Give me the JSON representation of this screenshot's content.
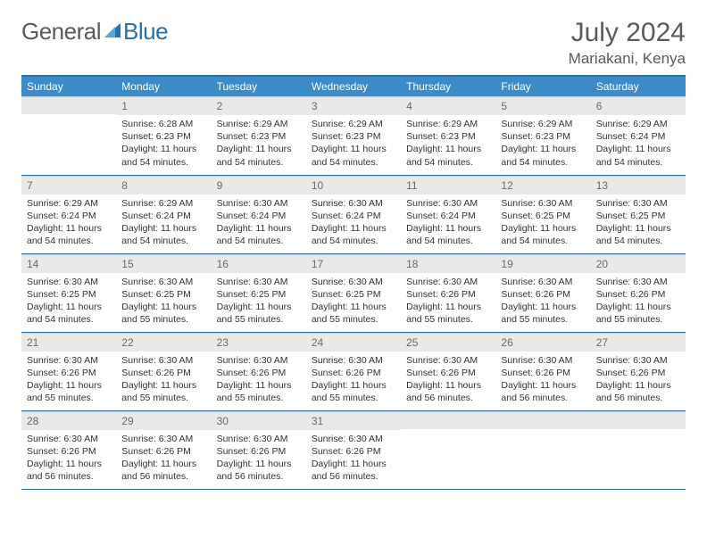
{
  "brand": {
    "part1": "General",
    "part2": "Blue"
  },
  "logo_colors": {
    "text1": "#5a5a5a",
    "text2": "#2b6fa3",
    "icon": "#2b6fa3"
  },
  "header": {
    "month": "July 2024",
    "location": "Mariakani, Kenya"
  },
  "header_bg": "#3b8bc8",
  "header_border": "#2b6fa3",
  "daynum_bg": "#e9e9e9",
  "day_names": [
    "Sunday",
    "Monday",
    "Tuesday",
    "Wednesday",
    "Thursday",
    "Friday",
    "Saturday"
  ],
  "weeks": [
    [
      null,
      {
        "n": "1",
        "sr": "6:28 AM",
        "ss": "6:23 PM",
        "dl": "11 hours and 54 minutes."
      },
      {
        "n": "2",
        "sr": "6:29 AM",
        "ss": "6:23 PM",
        "dl": "11 hours and 54 minutes."
      },
      {
        "n": "3",
        "sr": "6:29 AM",
        "ss": "6:23 PM",
        "dl": "11 hours and 54 minutes."
      },
      {
        "n": "4",
        "sr": "6:29 AM",
        "ss": "6:23 PM",
        "dl": "11 hours and 54 minutes."
      },
      {
        "n": "5",
        "sr": "6:29 AM",
        "ss": "6:23 PM",
        "dl": "11 hours and 54 minutes."
      },
      {
        "n": "6",
        "sr": "6:29 AM",
        "ss": "6:24 PM",
        "dl": "11 hours and 54 minutes."
      }
    ],
    [
      {
        "n": "7",
        "sr": "6:29 AM",
        "ss": "6:24 PM",
        "dl": "11 hours and 54 minutes."
      },
      {
        "n": "8",
        "sr": "6:29 AM",
        "ss": "6:24 PM",
        "dl": "11 hours and 54 minutes."
      },
      {
        "n": "9",
        "sr": "6:30 AM",
        "ss": "6:24 PM",
        "dl": "11 hours and 54 minutes."
      },
      {
        "n": "10",
        "sr": "6:30 AM",
        "ss": "6:24 PM",
        "dl": "11 hours and 54 minutes."
      },
      {
        "n": "11",
        "sr": "6:30 AM",
        "ss": "6:24 PM",
        "dl": "11 hours and 54 minutes."
      },
      {
        "n": "12",
        "sr": "6:30 AM",
        "ss": "6:25 PM",
        "dl": "11 hours and 54 minutes."
      },
      {
        "n": "13",
        "sr": "6:30 AM",
        "ss": "6:25 PM",
        "dl": "11 hours and 54 minutes."
      }
    ],
    [
      {
        "n": "14",
        "sr": "6:30 AM",
        "ss": "6:25 PM",
        "dl": "11 hours and 54 minutes."
      },
      {
        "n": "15",
        "sr": "6:30 AM",
        "ss": "6:25 PM",
        "dl": "11 hours and 55 minutes."
      },
      {
        "n": "16",
        "sr": "6:30 AM",
        "ss": "6:25 PM",
        "dl": "11 hours and 55 minutes."
      },
      {
        "n": "17",
        "sr": "6:30 AM",
        "ss": "6:25 PM",
        "dl": "11 hours and 55 minutes."
      },
      {
        "n": "18",
        "sr": "6:30 AM",
        "ss": "6:26 PM",
        "dl": "11 hours and 55 minutes."
      },
      {
        "n": "19",
        "sr": "6:30 AM",
        "ss": "6:26 PM",
        "dl": "11 hours and 55 minutes."
      },
      {
        "n": "20",
        "sr": "6:30 AM",
        "ss": "6:26 PM",
        "dl": "11 hours and 55 minutes."
      }
    ],
    [
      {
        "n": "21",
        "sr": "6:30 AM",
        "ss": "6:26 PM",
        "dl": "11 hours and 55 minutes."
      },
      {
        "n": "22",
        "sr": "6:30 AM",
        "ss": "6:26 PM",
        "dl": "11 hours and 55 minutes."
      },
      {
        "n": "23",
        "sr": "6:30 AM",
        "ss": "6:26 PM",
        "dl": "11 hours and 55 minutes."
      },
      {
        "n": "24",
        "sr": "6:30 AM",
        "ss": "6:26 PM",
        "dl": "11 hours and 55 minutes."
      },
      {
        "n": "25",
        "sr": "6:30 AM",
        "ss": "6:26 PM",
        "dl": "11 hours and 56 minutes."
      },
      {
        "n": "26",
        "sr": "6:30 AM",
        "ss": "6:26 PM",
        "dl": "11 hours and 56 minutes."
      },
      {
        "n": "27",
        "sr": "6:30 AM",
        "ss": "6:26 PM",
        "dl": "11 hours and 56 minutes."
      }
    ],
    [
      {
        "n": "28",
        "sr": "6:30 AM",
        "ss": "6:26 PM",
        "dl": "11 hours and 56 minutes."
      },
      {
        "n": "29",
        "sr": "6:30 AM",
        "ss": "6:26 PM",
        "dl": "11 hours and 56 minutes."
      },
      {
        "n": "30",
        "sr": "6:30 AM",
        "ss": "6:26 PM",
        "dl": "11 hours and 56 minutes."
      },
      {
        "n": "31",
        "sr": "6:30 AM",
        "ss": "6:26 PM",
        "dl": "11 hours and 56 minutes."
      },
      null,
      null,
      null
    ]
  ],
  "labels": {
    "sunrise": "Sunrise:",
    "sunset": "Sunset:",
    "daylight": "Daylight:"
  }
}
